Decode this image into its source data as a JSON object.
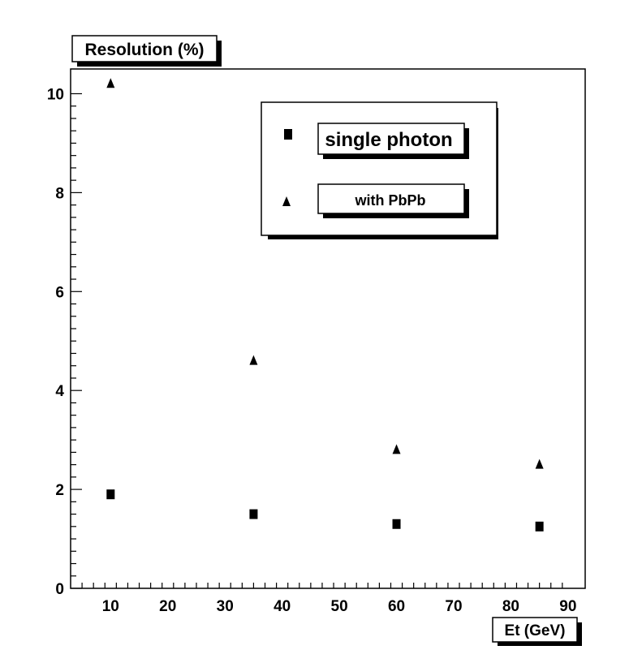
{
  "chart_data": {
    "type": "scatter",
    "title": "",
    "xlabel": "Et (GeV)",
    "ylabel": "Resolution (%)",
    "xlim": [
      3,
      93
    ],
    "ylim": [
      0,
      10.5
    ],
    "x_ticks": [
      10,
      20,
      30,
      40,
      50,
      60,
      70,
      80,
      90
    ],
    "y_ticks": [
      0,
      2,
      4,
      6,
      8,
      10
    ],
    "grid": false,
    "legend_position": "top-right",
    "series": [
      {
        "name": "single photon",
        "marker": "square",
        "color": "#000000",
        "x": [
          10,
          35,
          60,
          85
        ],
        "y": [
          1.9,
          1.5,
          1.3,
          1.25
        ]
      },
      {
        "name": "with PbPb",
        "marker": "triangle",
        "color": "#000000",
        "x": [
          10,
          35,
          60,
          85
        ],
        "y": [
          10.2,
          4.6,
          2.8,
          2.5
        ]
      }
    ]
  }
}
